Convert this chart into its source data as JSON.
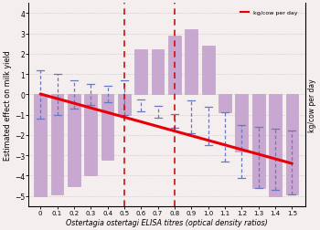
{
  "x_positions": [
    0,
    0.1,
    0.2,
    0.3,
    0.4,
    0.5,
    0.6,
    0.7,
    0.8,
    0.9,
    1.0,
    1.1,
    1.2,
    1.3,
    1.4,
    1.5
  ],
  "bar_heights": [
    -5.0,
    -4.9,
    -4.5,
    -4.0,
    -3.2,
    -1.0,
    2.2,
    2.2,
    2.9,
    3.2,
    2.4,
    -0.9,
    -2.8,
    -4.6,
    -5.0,
    -4.9
  ],
  "error_centers": [
    0.0,
    0.0,
    0.0,
    0.0,
    0.0,
    -0.15,
    -0.55,
    -0.85,
    -1.3,
    -1.1,
    -1.55,
    -2.1,
    -2.8,
    -3.1,
    -3.2,
    -3.35
  ],
  "error_half": [
    1.2,
    1.0,
    0.7,
    0.5,
    0.4,
    0.85,
    0.3,
    0.3,
    0.35,
    0.8,
    0.95,
    1.2,
    1.3,
    1.5,
    1.5,
    1.55
  ],
  "red_line_x": [
    0,
    1.5
  ],
  "red_line_y": [
    0.02,
    -3.4
  ],
  "vline1_x": 0.5,
  "vline2_x": 0.8,
  "bar_color": "#c8a8d0",
  "bar_edge_color": "#b898c0",
  "error_color": "#6878c0",
  "red_line_color": "#e80008",
  "vline_color": "#cc1010",
  "xlabel": "Ostertagia ostertagi ELISA titres (optical density ratios)",
  "ylabel": "Estimated effect on milk yield",
  "right_label": "kg/cow per day",
  "legend_label": "kg/cow per day",
  "ylim": [
    -5.5,
    4.5
  ],
  "xlim": [
    -0.07,
    1.58
  ],
  "yticks": [
    -5,
    -4,
    -3,
    -2,
    -1,
    0,
    1,
    2,
    3,
    4
  ],
  "xtick_labels": [
    "0",
    "0.1",
    "0.2",
    "0.3",
    "0.4",
    "0.5",
    "0.6",
    "0.7",
    "0.8",
    "0.9",
    "1.0",
    "1.1",
    "1.2",
    "1.3",
    "1.4",
    "1.5"
  ],
  "bar_width": 0.075,
  "background_color": "#f5eeee",
  "grid_color": "#c0b8b8",
  "xlabel_style": "italic"
}
